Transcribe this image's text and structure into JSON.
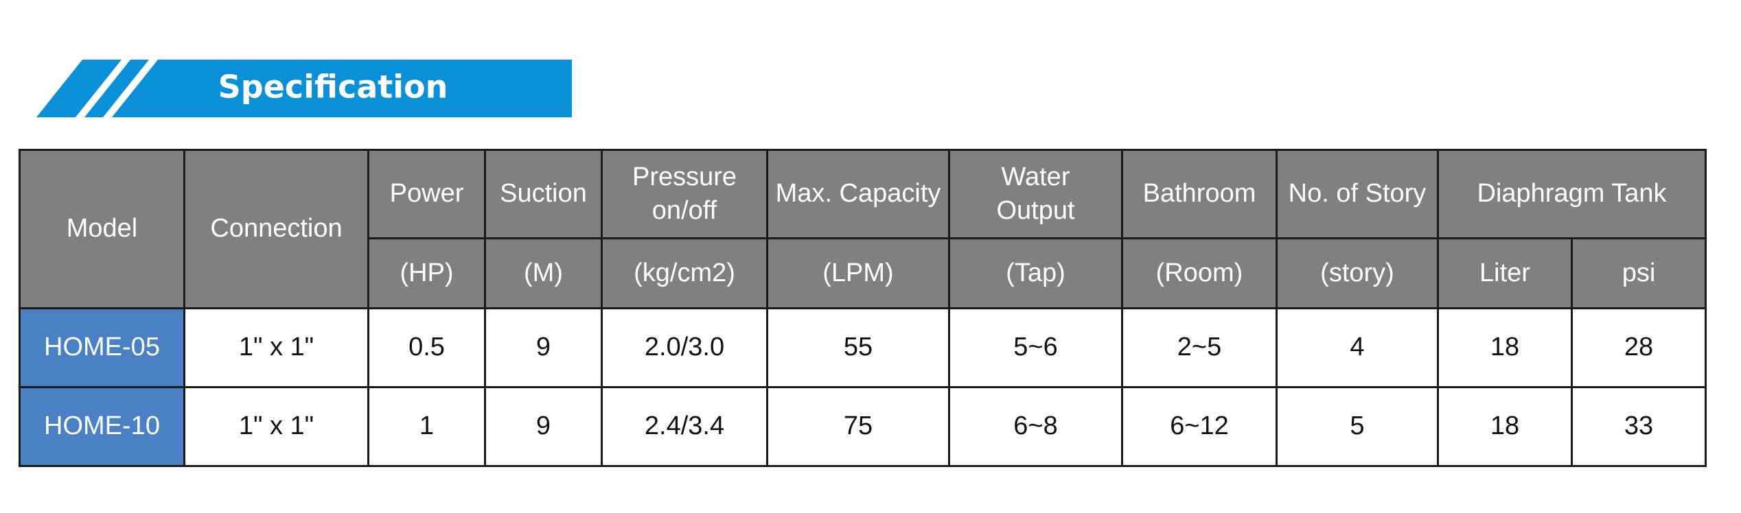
{
  "header": {
    "title": "Specification"
  },
  "table": {
    "header_top": [
      "Model",
      "Connection",
      "Power",
      "Suction",
      "Pressure\non/off",
      "Max. Capacity",
      "Water\nOutput",
      "Bathroom",
      "No. of Story",
      "Diaphragm Tank"
    ],
    "header_units": [
      "(HP)",
      "(M)",
      "(kg/cm2)",
      "(LPM)",
      "(Tap)",
      "(Room)",
      "(story)",
      "Liter",
      "psi"
    ],
    "rows": [
      [
        "HOME-05",
        "1\" x 1\"",
        "0.5",
        "9",
        "2.0/3.0",
        "55",
        "5~6",
        "2~5",
        "4",
        "18",
        "28"
      ],
      [
        "HOME-10",
        "1\" x 1\"",
        "1",
        "9",
        "2.4/3.4",
        "75",
        "6~8",
        "6~12",
        "5",
        "18",
        "33"
      ]
    ]
  }
}
